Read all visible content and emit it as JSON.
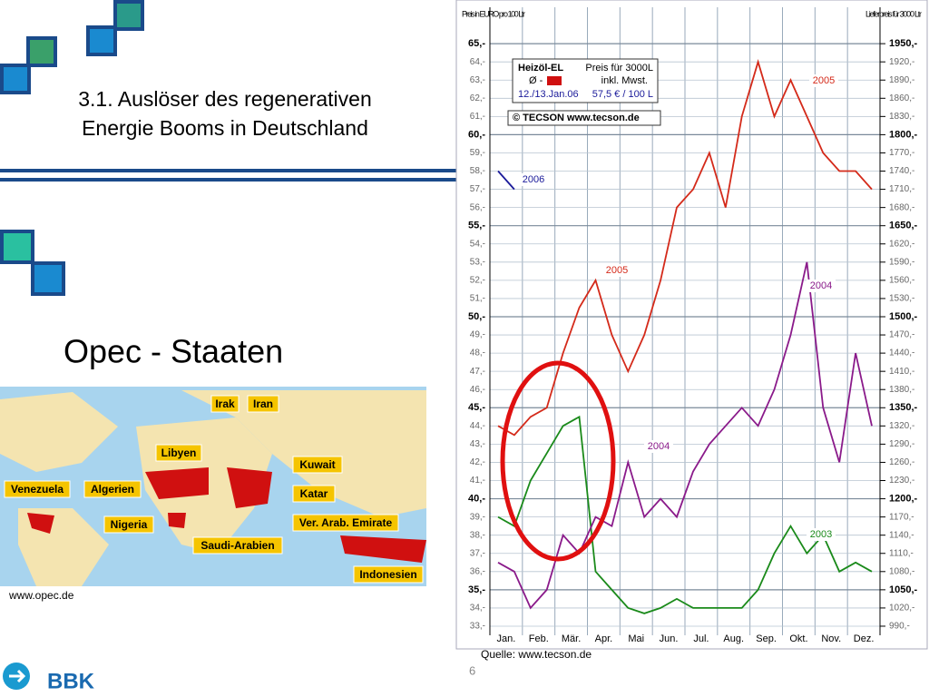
{
  "slide": {
    "title_line1": "3.1. Auslöser des regenerativen",
    "title_line2": "Energie Booms in Deutschland",
    "subtitle": "Opec - Staaten",
    "map_labels": [
      "Irak",
      "Iran",
      "Libyen",
      "Kuwait",
      "Algerien",
      "Venezuela",
      "Katar",
      "Nigeria",
      "Ver. Arab. Emirate",
      "Saudi-Arabien",
      "Indonesien"
    ],
    "map_source": "www.opec.de",
    "chart_source": "Quelle: www.tecson.de",
    "page_number": "6",
    "logo": "BBK"
  },
  "chart_data": {
    "type": "line",
    "y_label": "Preis in EURO pro 100 Ltr",
    "y2_label": "Lieferpreis für 3000 Ltr",
    "annotations": [
      "Heizöl-EL",
      "Preis für 3000L",
      "Ø -",
      "inkl. Mwst.",
      "12./13.Jan.06",
      "57,5 € / 100 L",
      "© TECSON   www.tecson.de"
    ],
    "categories": [
      "Jan.",
      null,
      "Feb.",
      null,
      "Mär.",
      null,
      "Apr.",
      null,
      "Mai",
      null,
      "Jun.",
      null,
      "Jul.",
      null,
      "Aug.",
      null,
      "Sep.",
      null,
      "Okt.",
      null,
      "Nov.",
      null,
      "Dez.",
      null
    ],
    "series": [
      {
        "name": "2003",
        "color": "#1a8a1a",
        "values": [
          39,
          38.5,
          41,
          42.5,
          44,
          44.5,
          36,
          35,
          34,
          33.7,
          34,
          34.5,
          34,
          34,
          34,
          34,
          35,
          37,
          38.5,
          37,
          38,
          36,
          36.5,
          36
        ]
      },
      {
        "name": "2004",
        "color": "#8a1a8a",
        "values": [
          36.5,
          36,
          34,
          35,
          38,
          37,
          39,
          38.5,
          42,
          39,
          40,
          39,
          41.5,
          43,
          44,
          45,
          44,
          46,
          49,
          53,
          45,
          42,
          48,
          44
        ]
      },
      {
        "name": "2005",
        "color": "#d42a1a",
        "values": [
          44,
          43.5,
          44.5,
          45,
          48,
          50.5,
          52,
          49,
          47,
          49,
          52,
          56,
          57,
          59,
          56,
          61,
          64,
          61,
          63,
          61,
          59,
          58,
          58,
          57
        ]
      },
      {
        "name": "2006",
        "color": "#1a1a9a",
        "values": [
          58,
          57,
          null,
          null,
          null,
          null,
          null,
          null,
          null,
          null,
          null,
          null,
          null,
          null,
          null,
          null,
          null,
          null,
          null,
          null,
          null,
          null,
          null,
          null
        ]
      }
    ],
    "ylim": [
      32.5,
      67
    ],
    "y2lim": [
      975,
      2010
    ],
    "grid": true,
    "yticks": [
      {
        "value": 33,
        "label": "33,-"
      },
      {
        "value": 34,
        "label": "34,-"
      },
      {
        "value": 35,
        "label": "35,-"
      },
      {
        "value": 36,
        "label": "36,-"
      },
      {
        "value": 37,
        "label": "37,-"
      },
      {
        "value": 38,
        "label": "38,-"
      },
      {
        "value": 39,
        "label": "39,-"
      },
      {
        "value": 40,
        "label": "40,-"
      },
      {
        "value": 41,
        "label": "41,-"
      },
      {
        "value": 42,
        "label": "42,-"
      },
      {
        "value": 43,
        "label": "43,-"
      },
      {
        "value": 44,
        "label": "44,-"
      },
      {
        "value": 45,
        "label": "45,-"
      },
      {
        "value": 46,
        "label": "46,-"
      },
      {
        "value": 47,
        "label": "47,-"
      },
      {
        "value": 48,
        "label": "48,-"
      },
      {
        "value": 49,
        "label": "49,-"
      },
      {
        "value": 50,
        "label": "50,-"
      },
      {
        "value": 51,
        "label": "51,-"
      },
      {
        "value": 52,
        "label": "52,-"
      },
      {
        "value": 53,
        "label": "53,-"
      },
      {
        "value": 54,
        "label": "54,-"
      },
      {
        "value": 55,
        "label": "55,-"
      },
      {
        "value": 56,
        "label": "56,-"
      },
      {
        "value": 57,
        "label": "57,-"
      },
      {
        "value": 58,
        "label": "58,-"
      },
      {
        "value": 59,
        "label": "59,-"
      },
      {
        "value": 60,
        "label": "60,-"
      },
      {
        "value": 61,
        "label": "61,-"
      },
      {
        "value": 62,
        "label": "62,-"
      },
      {
        "value": 63,
        "label": "63,-"
      },
      {
        "value": 64,
        "label": "64,-"
      },
      {
        "value": 65,
        "label": "65,-"
      }
    ],
    "y2ticks": [
      {
        "value": 990,
        "label": "990,-"
      },
      {
        "value": 1020,
        "label": "1020,-"
      },
      {
        "value": 1050,
        "label": "1050,-"
      },
      {
        "value": 1080,
        "label": "1080,-"
      },
      {
        "value": 1110,
        "label": "1110,-"
      },
      {
        "value": 1140,
        "label": "1140,-"
      },
      {
        "value": 1170,
        "label": "1170,-"
      },
      {
        "value": 1200,
        "label": "1200,-"
      },
      {
        "value": 1230,
        "label": "1230,-"
      },
      {
        "value": 1260,
        "label": "1260,-"
      },
      {
        "value": 1290,
        "label": "1290,-"
      },
      {
        "value": 1320,
        "label": "1320,-"
      },
      {
        "value": 1350,
        "label": "1350,-"
      },
      {
        "value": 1380,
        "label": "1380,-"
      },
      {
        "value": 1410,
        "label": "1410,-"
      },
      {
        "value": 1440,
        "label": "1440,-"
      },
      {
        "value": 1470,
        "label": "1470,-"
      },
      {
        "value": 1500,
        "label": "1500,-"
      },
      {
        "value": 1530,
        "label": "1530,-"
      },
      {
        "value": 1560,
        "label": "1560,-"
      },
      {
        "value": 1590,
        "label": "1590,-"
      },
      {
        "value": 1620,
        "label": "1620,-"
      },
      {
        "value": 1650,
        "label": "1650,-"
      },
      {
        "value": 1680,
        "label": "1680,-"
      },
      {
        "value": 1710,
        "label": "1710,-"
      },
      {
        "value": 1740,
        "label": "1740,-"
      },
      {
        "value": 1770,
        "label": "1770,-"
      },
      {
        "value": 1800,
        "label": "1800,-"
      },
      {
        "value": 1830,
        "label": "1830,-"
      },
      {
        "value": 1860,
        "label": "1860,-"
      },
      {
        "value": 1890,
        "label": "1890,-"
      },
      {
        "value": 1920,
        "label": "1920,-"
      },
      {
        "value": 1950,
        "label": "1950,-"
      }
    ]
  }
}
